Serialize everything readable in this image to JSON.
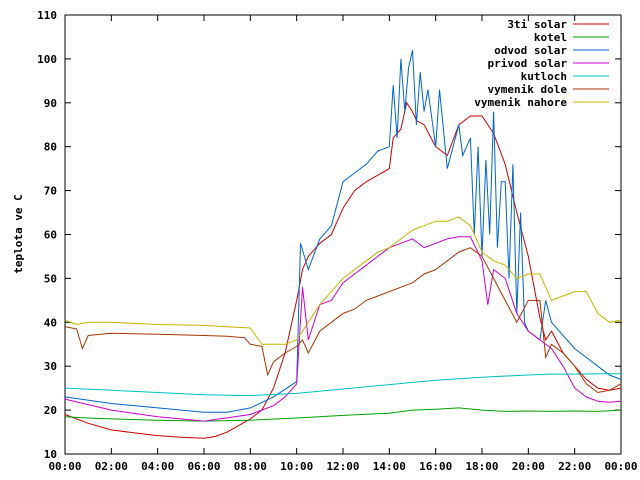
{
  "chart_data": {
    "type": "line",
    "title": "",
    "xlabel": "",
    "ylabel": "teplota ve C",
    "ylim": [
      10,
      110
    ],
    "yticks": [
      "10",
      "20",
      "30",
      "40",
      "50",
      "60",
      "70",
      "80",
      "90",
      "100",
      "110"
    ],
    "xlim": [
      "00:00",
      "24:00"
    ],
    "xticks": [
      "00:00",
      "02:00",
      "04:00",
      "06:00",
      "08:00",
      "10:00",
      "12:00",
      "14:00",
      "16:00",
      "18:00",
      "20:00",
      "22:00",
      "00:00"
    ],
    "grid": false,
    "legend_position": "top-right",
    "series": [
      {
        "name": "3ti solar",
        "color": "#cc0000",
        "x": [
          "00:00",
          "01:00",
          "02:00",
          "03:00",
          "04:00",
          "05:00",
          "06:00",
          "06:30",
          "07:00",
          "08:00",
          "08:30",
          "09:00",
          "09:30",
          "10:00",
          "10:15",
          "10:30",
          "11:00",
          "11:30",
          "12:00",
          "12:15",
          "12:30",
          "13:00",
          "13:30",
          "14:00",
          "14:10",
          "14:30",
          "14:45",
          "15:00",
          "15:10",
          "15:30",
          "16:00",
          "16:30",
          "17:00",
          "17:30",
          "18:00",
          "18:30",
          "19:00",
          "19:30",
          "20:00",
          "20:30",
          "20:45",
          "21:00",
          "21:30",
          "22:00",
          "22:30",
          "23:00",
          "23:30",
          "24:00"
        ],
        "y": [
          19,
          17,
          15.5,
          14.8,
          14.2,
          13.8,
          13.6,
          14,
          15,
          18,
          20,
          25,
          33,
          45,
          52,
          55,
          58,
          60,
          66,
          68,
          70,
          72,
          73.5,
          75,
          82,
          84,
          90,
          88,
          86,
          85,
          80,
          78,
          85,
          87,
          87,
          83,
          76,
          65,
          55,
          41,
          36,
          38,
          33,
          30,
          27,
          25,
          24.5,
          25
        ]
      },
      {
        "name": "kotel",
        "color": "#00a000",
        "x": [
          "00:00",
          "01:00",
          "02:00",
          "04:00",
          "06:00",
          "08:00",
          "10:00",
          "12:00",
          "14:00",
          "15:00",
          "16:00",
          "17:00",
          "18:00",
          "19:00",
          "20:00",
          "21:00",
          "22:00",
          "23:00",
          "24:00"
        ],
        "y": [
          18.5,
          18.2,
          18,
          17.7,
          17.5,
          17.7,
          18.2,
          18.8,
          19.3,
          20,
          20.2,
          20.5,
          20,
          19.7,
          19.8,
          19.7,
          19.8,
          19.7,
          20
        ]
      },
      {
        "name": "odvod solar",
        "color": "#0066cc",
        "x": [
          "00:00",
          "02:00",
          "04:00",
          "06:00",
          "07:00",
          "08:00",
          "09:00",
          "10:00",
          "10:10",
          "10:30",
          "11:00",
          "11:30",
          "12:00",
          "12:30",
          "13:00",
          "13:30",
          "14:00",
          "14:10",
          "14:20",
          "14:30",
          "14:40",
          "14:50",
          "15:00",
          "15:10",
          "15:20",
          "15:30",
          "15:40",
          "16:00",
          "16:10",
          "16:30",
          "17:00",
          "17:10",
          "17:30",
          "17:40",
          "17:50",
          "18:00",
          "18:10",
          "18:20",
          "18:30",
          "18:40",
          "18:50",
          "19:00",
          "19:10",
          "19:20",
          "19:30",
          "19:40",
          "19:50",
          "20:00",
          "20:30",
          "20:45",
          "21:00",
          "21:30",
          "22:00",
          "22:30",
          "23:00",
          "23:30",
          "24:00"
        ],
        "y": [
          23,
          21.5,
          20.5,
          19.5,
          19.5,
          20.5,
          23,
          26.5,
          58,
          52,
          59,
          62,
          72,
          74,
          76,
          79,
          80,
          94,
          82,
          100,
          88,
          98,
          102,
          85,
          97,
          88,
          93,
          80,
          93,
          75,
          85,
          78,
          82,
          60,
          80,
          55,
          77,
          60,
          88,
          57,
          72,
          72,
          50,
          76,
          42,
          65,
          40,
          38,
          36,
          45,
          40,
          37,
          34,
          32,
          30,
          28,
          27
        ]
      },
      {
        "name": "privod solar",
        "color": "#cc00cc",
        "x": [
          "00:00",
          "02:00",
          "04:00",
          "06:00",
          "08:00",
          "09:00",
          "09:30",
          "10:00",
          "10:15",
          "10:30",
          "11:00",
          "11:30",
          "12:00",
          "12:30",
          "13:00",
          "13:30",
          "14:00",
          "14:30",
          "15:00",
          "15:30",
          "16:00",
          "16:30",
          "17:00",
          "17:30",
          "18:00",
          "18:15",
          "18:30",
          "19:00",
          "19:30",
          "20:00",
          "20:30",
          "21:00",
          "21:30",
          "22:00",
          "22:30",
          "23:00",
          "23:30",
          "24:00"
        ],
        "y": [
          22.5,
          20,
          18.5,
          17.5,
          19,
          21,
          23,
          26,
          48,
          36,
          44,
          45,
          49,
          51,
          53,
          55,
          57,
          58,
          59,
          57,
          58,
          59,
          59.5,
          59.5,
          54,
          44,
          52,
          50,
          42,
          38,
          36,
          34,
          30,
          25,
          23,
          22,
          21.8,
          22
        ]
      },
      {
        "name": "kutloch",
        "color": "#00c0c0",
        "x": [
          "00:00",
          "02:00",
          "04:00",
          "06:00",
          "08:00",
          "10:00",
          "12:00",
          "14:00",
          "16:00",
          "18:00",
          "20:00",
          "21:00",
          "22:00",
          "23:00",
          "24:00"
        ],
        "y": [
          25,
          24.5,
          24,
          23.5,
          23.3,
          23.8,
          24.8,
          25.8,
          26.8,
          27.5,
          28,
          28.2,
          28.2,
          28.3,
          28.3
        ]
      },
      {
        "name": "vymenik dole",
        "color": "#aa3300",
        "x": [
          "00:00",
          "00:30",
          "00:45",
          "01:00",
          "02:00",
          "04:00",
          "06:00",
          "07:00",
          "07:45",
          "08:00",
          "08:30",
          "08:45",
          "09:00",
          "09:30",
          "10:00",
          "10:15",
          "10:30",
          "11:00",
          "11:30",
          "12:00",
          "12:30",
          "13:00",
          "13:30",
          "14:00",
          "14:30",
          "15:00",
          "15:30",
          "16:00",
          "16:30",
          "17:00",
          "17:30",
          "18:00",
          "18:30",
          "19:00",
          "19:30",
          "20:00",
          "20:30",
          "20:45",
          "21:00",
          "21:30",
          "22:00",
          "22:30",
          "23:00",
          "23:30",
          "24:00"
        ],
        "y": [
          39,
          38.5,
          34,
          37,
          37.5,
          37.3,
          37,
          36.8,
          36.5,
          35,
          34.5,
          28,
          31,
          33,
          34.5,
          36,
          33,
          38,
          40,
          42,
          43,
          45,
          46,
          47,
          48,
          49,
          51,
          52,
          54,
          56,
          57,
          55,
          50,
          45,
          40,
          45,
          45,
          32,
          35,
          33,
          30,
          26,
          24,
          24.5,
          26
        ]
      },
      {
        "name": "vymenik nahore",
        "color": "#c8b400",
        "x": [
          "00:00",
          "00:30",
          "01:00",
          "02:00",
          "04:00",
          "06:00",
          "07:00",
          "08:00",
          "08:30",
          "09:00",
          "09:30",
          "10:00",
          "10:30",
          "11:00",
          "11:30",
          "12:00",
          "12:30",
          "13:00",
          "13:30",
          "14:00",
          "14:30",
          "15:00",
          "15:30",
          "16:00",
          "16:30",
          "17:00",
          "17:30",
          "18:00",
          "18:30",
          "19:00",
          "19:30",
          "20:00",
          "20:30",
          "21:00",
          "21:30",
          "22:00",
          "22:30",
          "23:00",
          "23:30",
          "24:00"
        ],
        "y": [
          40.5,
          39.5,
          40,
          40,
          39.5,
          39.3,
          39,
          38.7,
          35,
          35,
          35,
          36,
          40,
          44,
          47,
          50,
          52,
          54,
          56,
          57,
          59,
          61,
          62,
          63,
          63,
          64,
          62,
          56,
          54,
          53,
          50,
          51,
          51,
          45,
          46,
          47,
          47,
          42,
          40,
          40.5
        ]
      }
    ]
  }
}
